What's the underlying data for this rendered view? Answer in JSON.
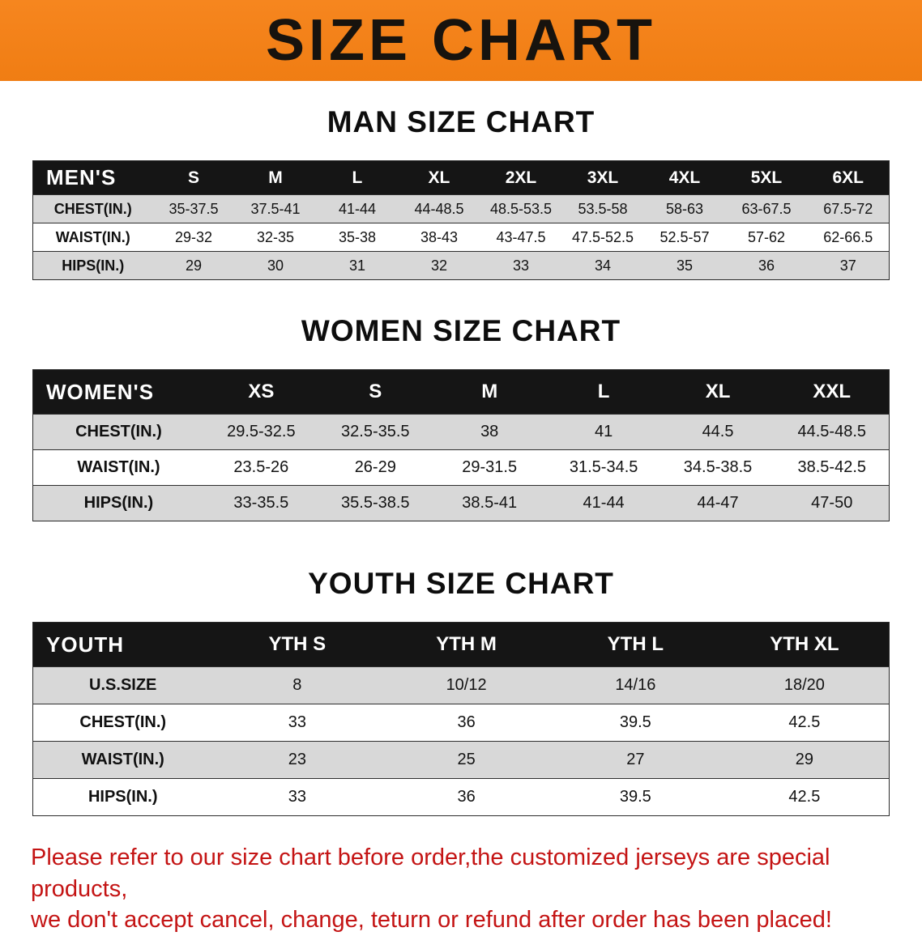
{
  "banner": {
    "title": "SIZE CHART"
  },
  "colors": {
    "banner_bg": "#f6861f",
    "header_bg": "#151515",
    "stripe": "#d8d8d8",
    "footer_text": "#c41414"
  },
  "sections": [
    {
      "id": "men",
      "heading": "MAN SIZE CHART",
      "table": {
        "header": [
          "MEN'S",
          "S",
          "M",
          "L",
          "XL",
          "2XL",
          "3XL",
          "4XL",
          "5XL",
          "6XL"
        ],
        "rows": [
          {
            "label": "CHEST(IN.)",
            "values": [
              "35-37.5",
              "37.5-41",
              "41-44",
              "44-48.5",
              "48.5-53.5",
              "53.5-58",
              "58-63",
              "63-67.5",
              "67.5-72"
            ]
          },
          {
            "label": "WAIST(IN.)",
            "values": [
              "29-32",
              "32-35",
              "35-38",
              "38-43",
              "43-47.5",
              "47.5-52.5",
              "52.5-57",
              "57-62",
              "62-66.5"
            ]
          },
          {
            "label": "HIPS(IN.)",
            "values": [
              "29",
              "30",
              "31",
              "32",
              "33",
              "34",
              "35",
              "36",
              "37"
            ]
          }
        ]
      }
    },
    {
      "id": "women",
      "heading": "WOMEN SIZE CHART",
      "table": {
        "header": [
          "WOMEN'S",
          "XS",
          "S",
          "M",
          "L",
          "XL",
          "XXL"
        ],
        "rows": [
          {
            "label": "CHEST(IN.)",
            "values": [
              "29.5-32.5",
              "32.5-35.5",
              "38",
              "41",
              "44.5",
              "44.5-48.5"
            ]
          },
          {
            "label": "WAIST(IN.)",
            "values": [
              "23.5-26",
              "26-29",
              "29-31.5",
              "31.5-34.5",
              "34.5-38.5",
              "38.5-42.5"
            ]
          },
          {
            "label": "HIPS(IN.)",
            "values": [
              "33-35.5",
              "35.5-38.5",
              "38.5-41",
              "41-44",
              "44-47",
              "47-50"
            ]
          }
        ]
      }
    },
    {
      "id": "youth",
      "heading": "YOUTH SIZE CHART",
      "table": {
        "header": [
          "YOUTH",
          "YTH S",
          "YTH M",
          "YTH L",
          "YTH XL"
        ],
        "rows": [
          {
            "label": "U.S.SIZE",
            "values": [
              "8",
              "10/12",
              "14/16",
              "18/20"
            ]
          },
          {
            "label": "CHEST(IN.)",
            "values": [
              "33",
              "36",
              "39.5",
              "42.5"
            ]
          },
          {
            "label": "WAIST(IN.)",
            "values": [
              "23",
              "25",
              "27",
              "29"
            ]
          },
          {
            "label": "HIPS(IN.)",
            "values": [
              "33",
              "36",
              "39.5",
              "42.5"
            ]
          }
        ]
      }
    }
  ],
  "footer": {
    "lines": [
      "Please refer to our size chart before order,the customized jerseys are special products,",
      "we don't accept cancel, change, teturn or refund after order has been placed!"
    ]
  }
}
